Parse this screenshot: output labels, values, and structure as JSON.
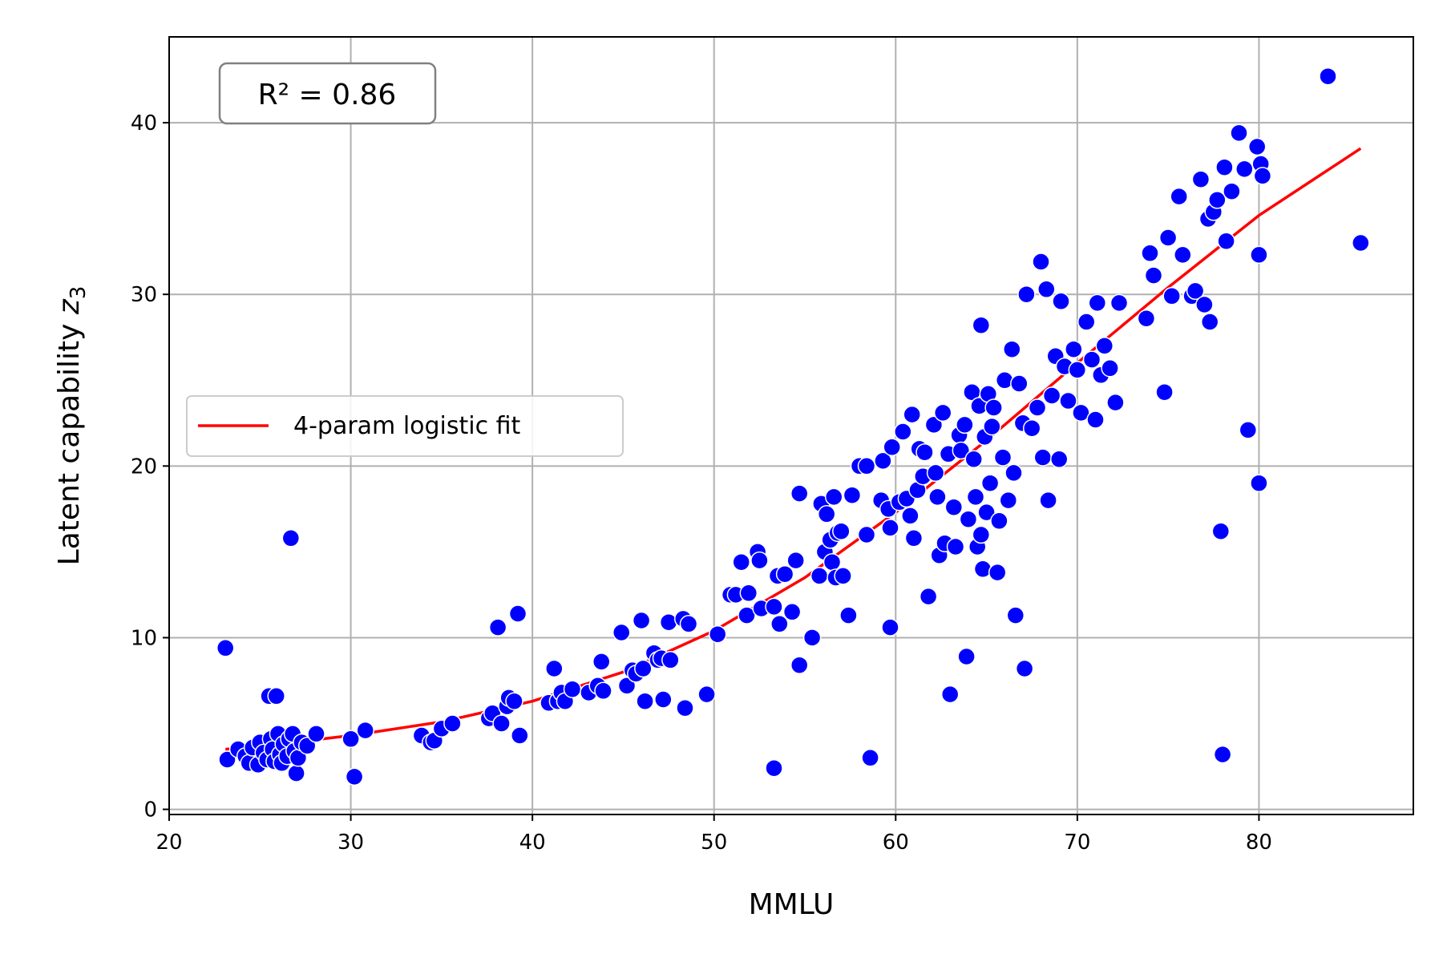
{
  "chart_data": {
    "type": "scatter",
    "xlabel": "MMLU",
    "ylabel_prefix": "Latent capability ",
    "ylabel_var": "z",
    "ylabel_sub": "3",
    "xlim": [
      20,
      88.5
    ],
    "ylim": [
      -0.3,
      45
    ],
    "xticks": [
      20,
      30,
      40,
      50,
      60,
      70,
      80
    ],
    "yticks": [
      0,
      10,
      20,
      30,
      40
    ],
    "grid": true,
    "legend": {
      "placement": "center-left",
      "entries": [
        "4-param logistic fit"
      ]
    },
    "annotation": "R² = 0.86",
    "colors": {
      "points": "#0000ff",
      "fit": "#ff0000",
      "grid": "#b0b0b0"
    },
    "series": [
      {
        "kind": "scatter",
        "points": [
          [
            23.1,
            9.4
          ],
          [
            23.2,
            2.9
          ],
          [
            23.8,
            3.5
          ],
          [
            24.2,
            3.1
          ],
          [
            24.4,
            2.7
          ],
          [
            24.6,
            3.6
          ],
          [
            24.9,
            2.6
          ],
          [
            25.0,
            3.9
          ],
          [
            25.2,
            3.3
          ],
          [
            25.4,
            2.9
          ],
          [
            25.5,
            6.6
          ],
          [
            25.6,
            4.1
          ],
          [
            25.7,
            3.5
          ],
          [
            25.8,
            2.8
          ],
          [
            25.9,
            6.6
          ],
          [
            26.0,
            4.4
          ],
          [
            26.1,
            3.2
          ],
          [
            26.2,
            2.7
          ],
          [
            26.3,
            3.8
          ],
          [
            26.5,
            3.1
          ],
          [
            26.6,
            4.1
          ],
          [
            26.7,
            15.8
          ],
          [
            26.8,
            4.4
          ],
          [
            26.9,
            3.4
          ],
          [
            27.0,
            2.1
          ],
          [
            27.1,
            3.0
          ],
          [
            27.3,
            3.9
          ],
          [
            27.6,
            3.7
          ],
          [
            28.1,
            4.4
          ],
          [
            30.0,
            4.1
          ],
          [
            30.2,
            1.9
          ],
          [
            30.8,
            4.6
          ],
          [
            33.9,
            4.3
          ],
          [
            34.4,
            3.9
          ],
          [
            34.6,
            4.0
          ],
          [
            35.0,
            4.7
          ],
          [
            35.6,
            5.0
          ],
          [
            37.6,
            5.3
          ],
          [
            37.8,
            5.6
          ],
          [
            38.1,
            10.6
          ],
          [
            38.3,
            5.0
          ],
          [
            38.6,
            6.0
          ],
          [
            38.7,
            6.5
          ],
          [
            39.0,
            6.3
          ],
          [
            39.2,
            11.4
          ],
          [
            39.3,
            4.3
          ],
          [
            40.9,
            6.2
          ],
          [
            41.2,
            8.2
          ],
          [
            41.4,
            6.3
          ],
          [
            41.6,
            6.8
          ],
          [
            41.8,
            6.3
          ],
          [
            42.2,
            7.0
          ],
          [
            43.1,
            6.8
          ],
          [
            43.6,
            7.2
          ],
          [
            43.8,
            8.6
          ],
          [
            43.9,
            6.9
          ],
          [
            44.9,
            10.3
          ],
          [
            45.2,
            7.2
          ],
          [
            45.5,
            8.1
          ],
          [
            45.7,
            7.9
          ],
          [
            46.0,
            11.0
          ],
          [
            46.1,
            8.2
          ],
          [
            46.2,
            6.3
          ],
          [
            46.7,
            9.1
          ],
          [
            46.9,
            8.7
          ],
          [
            47.1,
            8.8
          ],
          [
            47.2,
            6.4
          ],
          [
            47.5,
            10.9
          ],
          [
            47.6,
            8.7
          ],
          [
            48.3,
            11.1
          ],
          [
            48.4,
            5.9
          ],
          [
            48.6,
            10.8
          ],
          [
            49.6,
            6.7
          ],
          [
            50.2,
            10.2
          ],
          [
            50.9,
            12.5
          ],
          [
            51.2,
            12.5
          ],
          [
            51.5,
            14.4
          ],
          [
            51.8,
            11.3
          ],
          [
            51.9,
            12.6
          ],
          [
            52.4,
            15.0
          ],
          [
            52.5,
            14.5
          ],
          [
            52.6,
            11.7
          ],
          [
            53.3,
            11.8
          ],
          [
            53.3,
            2.4
          ],
          [
            53.5,
            13.6
          ],
          [
            53.6,
            10.8
          ],
          [
            53.9,
            13.7
          ],
          [
            54.3,
            11.5
          ],
          [
            54.5,
            14.5
          ],
          [
            54.7,
            18.4
          ],
          [
            54.7,
            8.4
          ],
          [
            55.4,
            10.0
          ],
          [
            55.8,
            13.6
          ],
          [
            55.9,
            17.8
          ],
          [
            56.1,
            15.0
          ],
          [
            56.2,
            17.2
          ],
          [
            56.4,
            15.7
          ],
          [
            56.5,
            14.4
          ],
          [
            56.6,
            18.2
          ],
          [
            56.7,
            13.5
          ],
          [
            56.8,
            16.1
          ],
          [
            57.0,
            16.2
          ],
          [
            57.1,
            13.6
          ],
          [
            57.4,
            11.3
          ],
          [
            57.6,
            18.3
          ],
          [
            58.0,
            20.0
          ],
          [
            58.4,
            20.0
          ],
          [
            58.4,
            16.0
          ],
          [
            58.6,
            3.0
          ],
          [
            59.2,
            18.0
          ],
          [
            59.3,
            20.3
          ],
          [
            59.6,
            17.5
          ],
          [
            59.7,
            16.4
          ],
          [
            59.8,
            21.1
          ],
          [
            59.7,
            10.6
          ],
          [
            60.2,
            17.9
          ],
          [
            60.4,
            22.0
          ],
          [
            60.6,
            18.1
          ],
          [
            60.8,
            17.1
          ],
          [
            60.9,
            23.0
          ],
          [
            61.0,
            15.8
          ],
          [
            61.2,
            18.6
          ],
          [
            61.3,
            21.0
          ],
          [
            61.5,
            19.4
          ],
          [
            61.6,
            20.8
          ],
          [
            61.8,
            12.4
          ],
          [
            62.1,
            22.4
          ],
          [
            62.2,
            19.6
          ],
          [
            62.3,
            18.2
          ],
          [
            62.4,
            14.8
          ],
          [
            62.6,
            23.1
          ],
          [
            62.7,
            15.5
          ],
          [
            62.9,
            20.7
          ],
          [
            63.0,
            6.7
          ],
          [
            63.2,
            17.6
          ],
          [
            63.3,
            15.3
          ],
          [
            63.5,
            21.8
          ],
          [
            63.6,
            20.9
          ],
          [
            63.8,
            22.4
          ],
          [
            63.9,
            8.9
          ],
          [
            64.0,
            16.9
          ],
          [
            64.2,
            24.3
          ],
          [
            64.3,
            20.4
          ],
          [
            64.4,
            18.2
          ],
          [
            64.5,
            15.3
          ],
          [
            64.6,
            23.5
          ],
          [
            64.7,
            28.2
          ],
          [
            64.7,
            16.0
          ],
          [
            64.8,
            14.0
          ],
          [
            64.9,
            21.7
          ],
          [
            65.0,
            17.3
          ],
          [
            65.1,
            24.2
          ],
          [
            65.2,
            19.0
          ],
          [
            65.3,
            22.3
          ],
          [
            65.4,
            23.4
          ],
          [
            65.6,
            13.8
          ],
          [
            65.7,
            16.8
          ],
          [
            65.9,
            20.5
          ],
          [
            66.0,
            25.0
          ],
          [
            66.2,
            18.0
          ],
          [
            66.4,
            26.8
          ],
          [
            66.5,
            19.6
          ],
          [
            66.6,
            11.3
          ],
          [
            66.8,
            24.8
          ],
          [
            67.0,
            22.5
          ],
          [
            67.1,
            8.2
          ],
          [
            67.2,
            30.0
          ],
          [
            67.5,
            22.2
          ],
          [
            67.8,
            23.4
          ],
          [
            68.0,
            31.9
          ],
          [
            68.1,
            20.5
          ],
          [
            68.3,
            30.3
          ],
          [
            68.4,
            18.0
          ],
          [
            68.6,
            24.1
          ],
          [
            68.8,
            26.4
          ],
          [
            69.0,
            20.4
          ],
          [
            69.1,
            29.6
          ],
          [
            69.3,
            25.8
          ],
          [
            69.5,
            23.8
          ],
          [
            69.8,
            26.8
          ],
          [
            70.0,
            25.6
          ],
          [
            70.2,
            23.1
          ],
          [
            70.5,
            28.4
          ],
          [
            70.8,
            26.2
          ],
          [
            71.0,
            22.7
          ],
          [
            71.1,
            29.5
          ],
          [
            71.3,
            25.3
          ],
          [
            71.5,
            27.0
          ],
          [
            71.8,
            25.7
          ],
          [
            72.1,
            23.7
          ],
          [
            72.3,
            29.5
          ],
          [
            73.8,
            28.6
          ],
          [
            74.0,
            32.4
          ],
          [
            74.2,
            31.1
          ],
          [
            74.8,
            24.3
          ],
          [
            75.0,
            33.3
          ],
          [
            75.2,
            29.9
          ],
          [
            75.6,
            35.7
          ],
          [
            75.8,
            32.3
          ],
          [
            76.3,
            29.9
          ],
          [
            76.5,
            30.2
          ],
          [
            76.8,
            36.7
          ],
          [
            77.0,
            29.4
          ],
          [
            77.2,
            34.4
          ],
          [
            77.3,
            28.4
          ],
          [
            77.5,
            34.8
          ],
          [
            77.7,
            35.5
          ],
          [
            77.9,
            16.2
          ],
          [
            78.0,
            3.2
          ],
          [
            78.1,
            37.4
          ],
          [
            78.2,
            33.1
          ],
          [
            78.5,
            36.0
          ],
          [
            78.9,
            39.4
          ],
          [
            79.2,
            37.3
          ],
          [
            79.4,
            22.1
          ],
          [
            79.9,
            38.6
          ],
          [
            80.0,
            32.3
          ],
          [
            80.0,
            19.0
          ],
          [
            80.1,
            37.6
          ],
          [
            80.2,
            36.9
          ],
          [
            83.8,
            42.7
          ],
          [
            85.6,
            33.0
          ]
        ]
      },
      {
        "kind": "line",
        "name": "4-param logistic fit",
        "x": [
          23.1,
          26,
          30,
          35,
          40,
          45,
          50,
          55,
          60,
          65,
          70,
          75,
          80,
          85.6
        ],
        "y": [
          3.5,
          3.8,
          4.3,
          5.1,
          6.3,
          8.0,
          10.4,
          13.5,
          17.3,
          21.5,
          26.0,
          30.4,
          34.6,
          38.5
        ]
      }
    ]
  }
}
